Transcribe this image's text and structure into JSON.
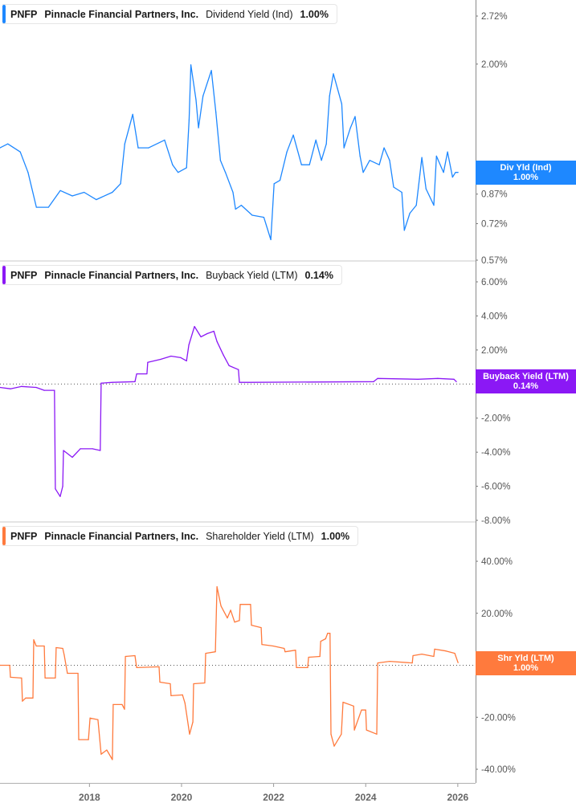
{
  "x_axis": {
    "xlim": [
      "2016-01-22",
      "2026-05-22"
    ],
    "ticks": [
      "2018",
      "2020",
      "2022",
      "2024",
      "2026"
    ]
  },
  "chart_data": [
    {
      "type": "line",
      "ticker": "PNFP",
      "company": "Pinnacle Financial Partners, Inc.",
      "metric": "Dividend Yield (Ind)",
      "value": "1.00%",
      "badge_label": "Div Yld (Ind)",
      "badge_value": "1.00%",
      "color": "#1e88ff",
      "y_scale": "log",
      "ylim": [
        0.57,
        2.72
      ],
      "y_ticks": [
        "2.72%",
        "2.00%",
        "1.00%",
        "0.87%",
        "0.72%",
        "0.57%"
      ],
      "y_tick_values": [
        2.72,
        2.0,
        1.0,
        0.87,
        0.72,
        0.57
      ],
      "zero_line": false,
      "points": [
        [
          "2016-01-22",
          1.17
        ],
        [
          "2016-03-24",
          1.2
        ],
        [
          "2016-07-01",
          1.14
        ],
        [
          "2016-09-01",
          1.0
        ],
        [
          "2016-11-06",
          0.8
        ],
        [
          "2017-02-10",
          0.8
        ],
        [
          "2017-05-15",
          0.89
        ],
        [
          "2017-08-18",
          0.86
        ],
        [
          "2017-11-20",
          0.88
        ],
        [
          "2018-02-24",
          0.84
        ],
        [
          "2018-07-01",
          0.88
        ],
        [
          "2018-09-05",
          0.93
        ],
        [
          "2018-10-08",
          1.2
        ],
        [
          "2018-12-10",
          1.45
        ],
        [
          "2019-01-22",
          1.17
        ],
        [
          "2019-04-15",
          1.17
        ],
        [
          "2019-08-20",
          1.23
        ],
        [
          "2019-10-22",
          1.05
        ],
        [
          "2019-12-05",
          1.0
        ],
        [
          "2020-02-10",
          1.03
        ],
        [
          "2020-03-01",
          1.4
        ],
        [
          "2020-03-15",
          1.99
        ],
        [
          "2020-04-25",
          1.59
        ],
        [
          "2020-05-15",
          1.33
        ],
        [
          "2020-06-20",
          1.63
        ],
        [
          "2020-08-25",
          1.92
        ],
        [
          "2020-09-30",
          1.47
        ],
        [
          "2020-11-05",
          1.08
        ],
        [
          "2020-12-15",
          1.0
        ],
        [
          "2021-02-13",
          0.88
        ],
        [
          "2021-03-05",
          0.79
        ],
        [
          "2021-04-20",
          0.81
        ],
        [
          "2021-07-15",
          0.76
        ],
        [
          "2021-10-15",
          0.75
        ],
        [
          "2021-12-10",
          0.65
        ],
        [
          "2022-01-05",
          0.93
        ],
        [
          "2022-02-20",
          0.95
        ],
        [
          "2022-04-16",
          1.14
        ],
        [
          "2022-06-06",
          1.27
        ],
        [
          "2022-08-10",
          1.05
        ],
        [
          "2022-10-12",
          1.05
        ],
        [
          "2022-12-02",
          1.23
        ],
        [
          "2023-01-15",
          1.08
        ],
        [
          "2023-02-23",
          1.2
        ],
        [
          "2023-03-20",
          1.63
        ],
        [
          "2023-04-20",
          1.88
        ],
        [
          "2023-05-22",
          1.71
        ],
        [
          "2023-06-25",
          1.55
        ],
        [
          "2023-07-13",
          1.17
        ],
        [
          "2023-09-02",
          1.33
        ],
        [
          "2023-10-09",
          1.43
        ],
        [
          "2023-11-17",
          1.11
        ],
        [
          "2023-12-12",
          1.0
        ],
        [
          "2024-02-02",
          1.08
        ],
        [
          "2024-04-18",
          1.05
        ],
        [
          "2024-05-26",
          1.17
        ],
        [
          "2024-07-09",
          1.08
        ],
        [
          "2024-08-10",
          0.91
        ],
        [
          "2024-10-14",
          0.88
        ],
        [
          "2024-11-03",
          0.69
        ],
        [
          "2024-12-17",
          0.77
        ],
        [
          "2025-02-06",
          0.81
        ],
        [
          "2025-03-03",
          0.96
        ],
        [
          "2025-03-22",
          1.1
        ],
        [
          "2025-04-24",
          0.9
        ],
        [
          "2025-06-25",
          0.81
        ],
        [
          "2025-07-16",
          1.11
        ],
        [
          "2025-09-10",
          1.0
        ],
        [
          "2025-10-12",
          1.14
        ],
        [
          "2025-11-20",
          0.97
        ],
        [
          "2025-12-14",
          1.0
        ],
        [
          "2026-01-03",
          1.0
        ]
      ]
    },
    {
      "type": "line",
      "ticker": "PNFP",
      "company": "Pinnacle Financial Partners, Inc.",
      "metric": "Buyback Yield (LTM)",
      "value": "0.14%",
      "badge_label": "Buyback Yield (LTM)",
      "badge_value": "0.14%",
      "color": "#8b18f5",
      "y_scale": "linear",
      "ylim": [
        -8,
        6
      ],
      "y_ticks": [
        "6.00%",
        "4.00%",
        "2.00%",
        "0.00%",
        "-2.00%",
        "-4.00%",
        "-6.00%",
        "-8.00%"
      ],
      "y_tick_values": [
        6,
        4,
        2,
        0,
        -2,
        -4,
        -6,
        -8
      ],
      "zero_line": true,
      "points": [
        [
          "2016-01-22",
          -0.2
        ],
        [
          "2016-04-14",
          -0.28
        ],
        [
          "2016-07-12",
          -0.14
        ],
        [
          "2016-11-05",
          -0.2
        ],
        [
          "2017-01-08",
          -0.37
        ],
        [
          "2017-03-30",
          -0.37
        ],
        [
          "2017-04-06",
          -6.15
        ],
        [
          "2017-05-14",
          -6.6
        ],
        [
          "2017-06-03",
          -6.0
        ],
        [
          "2017-06-09",
          -3.9
        ],
        [
          "2017-08-18",
          -4.3
        ],
        [
          "2017-10-21",
          -3.8
        ],
        [
          "2018-01-25",
          -3.8
        ],
        [
          "2018-03-28",
          -3.9
        ],
        [
          "2018-04-04",
          0.05
        ],
        [
          "2018-07-02",
          0.1
        ],
        [
          "2018-12-28",
          0.14
        ],
        [
          "2019-01-10",
          0.6
        ],
        [
          "2019-04-02",
          0.6
        ],
        [
          "2019-04-08",
          1.27
        ],
        [
          "2019-07-19",
          1.45
        ],
        [
          "2019-10-10",
          1.64
        ],
        [
          "2019-12-26",
          1.55
        ],
        [
          "2020-02-10",
          1.36
        ],
        [
          "2020-02-28",
          2.3
        ],
        [
          "2020-04-13",
          3.38
        ],
        [
          "2020-06-03",
          2.77
        ],
        [
          "2020-07-23",
          2.96
        ],
        [
          "2020-09-14",
          3.1
        ],
        [
          "2020-10-09",
          2.5
        ],
        [
          "2020-11-29",
          1.7
        ],
        [
          "2021-01-13",
          1.08
        ],
        [
          "2021-03-28",
          0.85
        ],
        [
          "2021-04-05",
          0.1
        ],
        [
          "2021-06-20",
          0.1
        ],
        [
          "2024-03-04",
          0.14
        ],
        [
          "2024-04-05",
          0.33
        ],
        [
          "2025-02-19",
          0.28
        ],
        [
          "2025-07-26",
          0.33
        ],
        [
          "2025-12-02",
          0.28
        ],
        [
          "2025-12-21",
          0.14
        ]
      ]
    },
    {
      "type": "line",
      "ticker": "PNFP",
      "company": "Pinnacle Financial Partners, Inc.",
      "metric": "Shareholder Yield (LTM)",
      "value": "1.00%",
      "badge_label": "Shr Yld (LTM)",
      "badge_value": "1.00%",
      "color": "#ff7a3d",
      "y_scale": "linear",
      "ylim": [
        -40,
        40
      ],
      "y_ticks": [
        "40.00%",
        "20.00%",
        "0.00%",
        "-20.00%",
        "-40.00%"
      ],
      "y_tick_values": [
        40,
        20,
        0,
        -20,
        -40
      ],
      "zero_line": true,
      "points": [
        [
          "2016-01-22",
          0
        ],
        [
          "2016-04-08",
          0
        ],
        [
          "2016-04-14",
          -4.6
        ],
        [
          "2016-07-12",
          -4.9
        ],
        [
          "2016-07-18",
          -13.8
        ],
        [
          "2016-08-13",
          -12.6
        ],
        [
          "2016-10-10",
          -12.6
        ],
        [
          "2016-10-16",
          9.8
        ],
        [
          "2016-11-05",
          7.4
        ],
        [
          "2017-01-08",
          7.4
        ],
        [
          "2017-01-14",
          -4.9
        ],
        [
          "2017-04-06",
          -4.9
        ],
        [
          "2017-04-12",
          6.8
        ],
        [
          "2017-06-03",
          6.5
        ],
        [
          "2017-06-15",
          4.0
        ],
        [
          "2017-07-10",
          -3.1
        ],
        [
          "2017-10-02",
          -3.1
        ],
        [
          "2017-10-08",
          -28.6
        ],
        [
          "2017-12-24",
          -28.6
        ],
        [
          "2018-01-06",
          -20.3
        ],
        [
          "2018-03-09",
          -20.9
        ],
        [
          "2018-04-04",
          -34.2
        ],
        [
          "2018-05-18",
          -32.6
        ],
        [
          "2018-07-02",
          -36.3
        ],
        [
          "2018-07-08",
          -15.1
        ],
        [
          "2018-09-17",
          -15.1
        ],
        [
          "2018-10-06",
          -16.9
        ],
        [
          "2018-10-13",
          3.4
        ],
        [
          "2018-12-28",
          3.7
        ],
        [
          "2019-01-10",
          -0.9
        ],
        [
          "2019-07-07",
          -0.6
        ],
        [
          "2019-07-13",
          -6.5
        ],
        [
          "2019-10-04",
          -7.1
        ],
        [
          "2019-10-10",
          -11.7
        ],
        [
          "2020-01-09",
          -11.4
        ],
        [
          "2020-01-28",
          -14.5
        ],
        [
          "2020-03-05",
          -26.5
        ],
        [
          "2020-03-31",
          -21.8
        ],
        [
          "2020-04-06",
          -7.1
        ],
        [
          "2020-07-04",
          -6.8
        ],
        [
          "2020-07-11",
          4.6
        ],
        [
          "2020-09-26",
          5.2
        ],
        [
          "2020-10-09",
          30.2
        ],
        [
          "2020-11-10",
          22.8
        ],
        [
          "2020-12-30",
          18.2
        ],
        [
          "2021-01-25",
          21.2
        ],
        [
          "2021-02-26",
          16.6
        ],
        [
          "2021-04-05",
          17.2
        ],
        [
          "2021-04-11",
          23.4
        ],
        [
          "2021-07-02",
          23.4
        ],
        [
          "2021-07-09",
          15.4
        ],
        [
          "2021-09-24",
          14.5
        ],
        [
          "2021-09-30",
          8.0
        ],
        [
          "2021-12-28",
          7.4
        ],
        [
          "2022-03-26",
          6.5
        ],
        [
          "2022-04-02",
          5.2
        ],
        [
          "2022-06-24",
          5.8
        ],
        [
          "2022-07-01",
          -0.9
        ],
        [
          "2022-09-28",
          -0.9
        ],
        [
          "2022-10-05",
          3.1
        ],
        [
          "2023-01-03",
          3.4
        ],
        [
          "2023-01-09",
          9.2
        ],
        [
          "2023-02-17",
          10.2
        ],
        [
          "2023-03-05",
          12.3
        ],
        [
          "2023-03-24",
          12.3
        ],
        [
          "2023-04-01",
          -26.5
        ],
        [
          "2023-04-26",
          -31.1
        ],
        [
          "2023-06-22",
          -26.5
        ],
        [
          "2023-07-05",
          -14.2
        ],
        [
          "2023-09-27",
          -15.7
        ],
        [
          "2023-10-03",
          -24.9
        ],
        [
          "2023-11-29",
          -17.2
        ],
        [
          "2024-01-01",
          -17.2
        ],
        [
          "2024-01-07",
          -24.9
        ],
        [
          "2024-03-29",
          -26.5
        ],
        [
          "2024-04-05",
          0.9
        ],
        [
          "2024-07-09",
          1.5
        ],
        [
          "2025-01-05",
          0.9
        ],
        [
          "2025-01-11",
          3.7
        ],
        [
          "2025-03-22",
          4.3
        ],
        [
          "2025-06-25",
          3.4
        ],
        [
          "2025-07-01",
          6.2
        ],
        [
          "2025-09-29",
          5.5
        ],
        [
          "2025-12-08",
          4.6
        ],
        [
          "2026-01-03",
          1.0
        ]
      ]
    }
  ]
}
